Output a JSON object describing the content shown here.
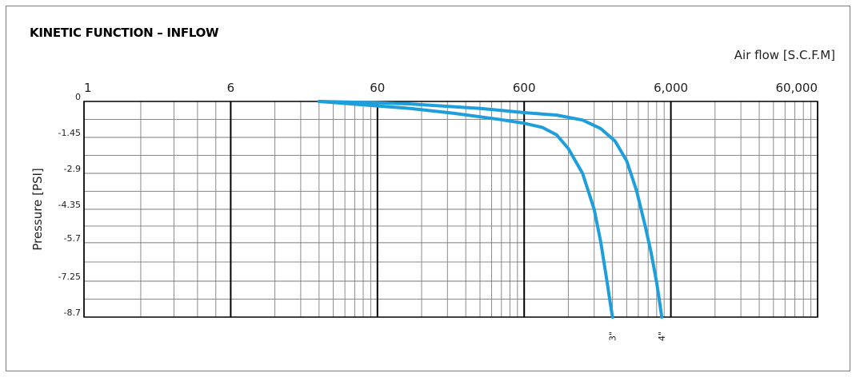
{
  "chart_data": {
    "type": "line",
    "title": "KINETIC FUNCTION – INFLOW",
    "xlabel": "Air flow [S.C.F.M]",
    "ylabel": "Pressure [PSI]",
    "x_scale": "log",
    "xlim": [
      1,
      60000
    ],
    "ylim": [
      -8.7,
      0
    ],
    "x_major_ticks": [
      1,
      6,
      60,
      600,
      6000,
      60000
    ],
    "x_tick_labels": [
      "1",
      "6",
      "60",
      "600",
      "6,000",
      "60,000"
    ],
    "y_ticks": [
      0,
      -1.45,
      -2.9,
      -4.35,
      -5.7,
      -7.25,
      -8.7
    ],
    "y_tick_labels": [
      "0",
      "-1.45",
      "-2.9",
      "-4.35",
      "-5.7",
      "-7.25",
      "-8.7"
    ],
    "grid": true,
    "line_color": "#1e9fdc",
    "series": [
      {
        "name": "3\"",
        "x": [
          24,
          40,
          60,
          100,
          200,
          400,
          600,
          800,
          1000,
          1200,
          1500,
          1800,
          2000,
          2200,
          2300,
          2400
        ],
        "y": [
          0,
          -0.1,
          -0.18,
          -0.28,
          -0.48,
          -0.72,
          -0.88,
          -1.05,
          -1.35,
          -1.9,
          -2.9,
          -4.35,
          -5.7,
          -7.25,
          -8.0,
          -8.7
        ]
      },
      {
        "name": "4\"",
        "x": [
          24,
          60,
          100,
          300,
          600,
          1000,
          1500,
          2000,
          2500,
          3000,
          3500,
          4000,
          4400,
          4800,
          5000,
          5200
        ],
        "y": [
          0,
          -0.05,
          -0.1,
          -0.28,
          -0.45,
          -0.55,
          -0.75,
          -1.1,
          -1.6,
          -2.4,
          -3.6,
          -5.0,
          -6.1,
          -7.3,
          -8.0,
          -8.7
        ]
      }
    ]
  }
}
